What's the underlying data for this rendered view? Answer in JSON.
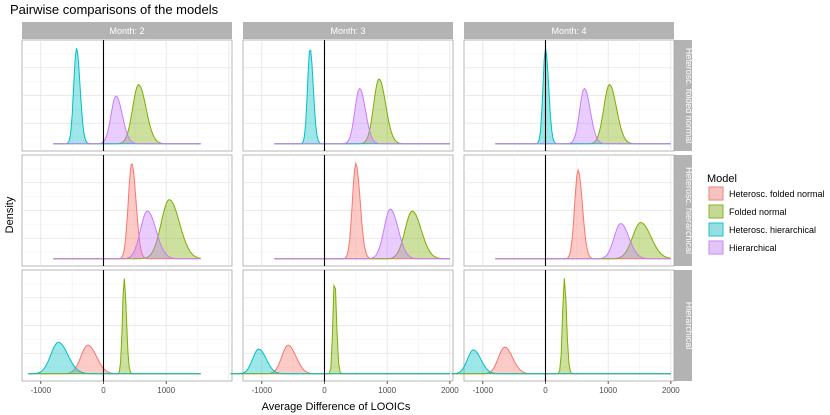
{
  "chart_data": {
    "type": "area",
    "subtype": "faceted density plot",
    "title": "Pairwise comparisons of the models",
    "xlabel": "Average Difference of LOOICs",
    "ylabel": "Density",
    "column_facets": [
      "Month: 2",
      "Month: 3",
      "Month: 4"
    ],
    "row_facets": [
      "Heterosc. folded normal",
      "Heterosc. hierarchical",
      "Hierarchical"
    ],
    "x_ticks": [
      -1000,
      0,
      1000,
      2000
    ],
    "x_tick_labels": [
      "-1000",
      "0",
      "1000",
      "2000"
    ],
    "reference_line_x": 0,
    "legend": {
      "title": "Model",
      "position": "right",
      "entries": [
        {
          "name": "Heterosc. folded normal",
          "fill": "#F8766D",
          "line": "#F8766D"
        },
        {
          "name": "Folded normal",
          "fill": "#7CAE00",
          "line": "#7CAE00"
        },
        {
          "name": "Heterosc. hierarchical",
          "fill": "#00BFC4",
          "line": "#00BFC4"
        },
        {
          "name": "Hierarchical",
          "fill": "#C77CFF",
          "line": "#C77CFF"
        }
      ]
    },
    "panels": [
      {
        "row": "Heterosc. folded normal",
        "column": "Month: 2",
        "x_range": [
          -800,
          1550
        ],
        "series": [
          {
            "model": "Folded normal",
            "center": 560,
            "sd": 95,
            "peak": 0.62
          },
          {
            "model": "Heterosc. hierarchical",
            "center": -430,
            "sd": 45,
            "peak": 1.0
          },
          {
            "model": "Hierarchical",
            "center": 200,
            "sd": 80,
            "peak": 0.5
          }
        ]
      },
      {
        "row": "Heterosc. folded normal",
        "column": "Month: 3",
        "x_range": [
          -800,
          2000
        ],
        "series": [
          {
            "model": "Folded normal",
            "center": 870,
            "sd": 85,
            "peak": 0.68
          },
          {
            "model": "Heterosc. hierarchical",
            "center": -230,
            "sd": 40,
            "peak": 1.0
          },
          {
            "model": "Hierarchical",
            "center": 560,
            "sd": 75,
            "peak": 0.58
          }
        ]
      },
      {
        "row": "Heterosc. folded normal",
        "column": "Month: 4",
        "x_range": [
          -800,
          2000
        ],
        "series": [
          {
            "model": "Folded normal",
            "center": 1020,
            "sd": 90,
            "peak": 0.62
          },
          {
            "model": "Heterosc. hierarchical",
            "center": 0,
            "sd": 40,
            "peak": 1.0
          },
          {
            "model": "Hierarchical",
            "center": 620,
            "sd": 75,
            "peak": 0.58
          }
        ]
      },
      {
        "row": "Heterosc. hierarchical",
        "column": "Month: 2",
        "x_range": [
          -800,
          1550
        ],
        "series": [
          {
            "model": "Heterosc. folded normal",
            "center": 450,
            "sd": 55,
            "peak": 1.0
          },
          {
            "model": "Folded normal",
            "center": 1050,
            "sd": 130,
            "peak": 0.62
          },
          {
            "model": "Hierarchical",
            "center": 700,
            "sd": 110,
            "peak": 0.5
          }
        ]
      },
      {
        "row": "Heterosc. hierarchical",
        "column": "Month: 3",
        "x_range": [
          -800,
          2000
        ],
        "series": [
          {
            "model": "Heterosc. folded normal",
            "center": 500,
            "sd": 55,
            "peak": 1.0
          },
          {
            "model": "Folded normal",
            "center": 1400,
            "sd": 115,
            "peak": 0.5
          },
          {
            "model": "Hierarchical",
            "center": 1050,
            "sd": 100,
            "peak": 0.52
          }
        ]
      },
      {
        "row": "Heterosc. hierarchical",
        "column": "Month: 4",
        "x_range": [
          -800,
          2000
        ],
        "series": [
          {
            "model": "Heterosc. folded normal",
            "center": 520,
            "sd": 55,
            "peak": 0.93
          },
          {
            "model": "Folded normal",
            "center": 1520,
            "sd": 130,
            "peak": 0.38
          },
          {
            "model": "Hierarchical",
            "center": 1200,
            "sd": 105,
            "peak": 0.37
          }
        ]
      },
      {
        "row": "Hierarchical",
        "column": "Month: 2",
        "x_range": [
          -1200,
          1550
        ],
        "series": [
          {
            "model": "Heterosc. folded normal",
            "center": -250,
            "sd": 110,
            "peak": 0.3
          },
          {
            "model": "Folded normal",
            "center": 330,
            "sd": 28,
            "peak": 1.0
          },
          {
            "model": "Heterosc. hierarchical",
            "center": -720,
            "sd": 120,
            "peak": 0.33
          }
        ]
      },
      {
        "row": "Hierarchical",
        "column": "Month: 3",
        "x_range": [
          -1500,
          2000
        ],
        "series": [
          {
            "model": "Heterosc. folded normal",
            "center": -580,
            "sd": 100,
            "peak": 0.3
          },
          {
            "model": "Folded normal",
            "center": 160,
            "sd": 25,
            "peak": 1.0
          },
          {
            "model": "Heterosc. hierarchical",
            "center": -1050,
            "sd": 95,
            "peak": 0.26
          }
        ]
      },
      {
        "row": "Hierarchical",
        "column": "Month: 4",
        "x_range": [
          -1500,
          2000
        ],
        "series": [
          {
            "model": "Heterosc. folded normal",
            "center": -650,
            "sd": 100,
            "peak": 0.28
          },
          {
            "model": "Folded normal",
            "center": 300,
            "sd": 28,
            "peak": 1.0
          },
          {
            "model": "Heterosc. hierarchical",
            "center": -1150,
            "sd": 95,
            "peak": 0.25
          }
        ]
      }
    ]
  }
}
